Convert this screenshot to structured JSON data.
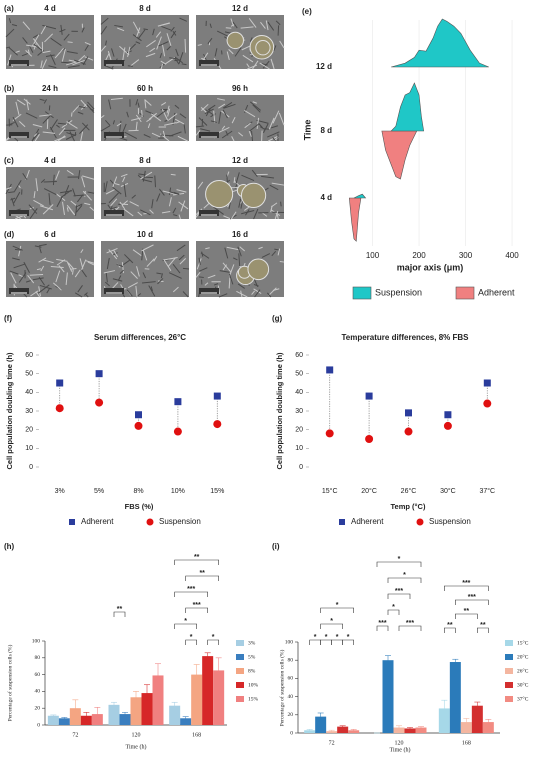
{
  "micrographs": [
    {
      "label": "(a)",
      "times": [
        "4 d",
        "8 d",
        "12 d"
      ]
    },
    {
      "label": "(b)",
      "times": [
        "24 h",
        "60 h",
        "96 h"
      ]
    },
    {
      "label": "(c)",
      "times": [
        "4 d",
        "8 d",
        "12 d"
      ]
    },
    {
      "label": "(d)",
      "times": [
        "6 d",
        "10 d",
        "16 d"
      ]
    }
  ],
  "chart_data": [
    {
      "type": "ridgeline",
      "label": "(e)",
      "xlabel": "major axis (μm)",
      "ylabel": "Time",
      "categories": [
        "4 d",
        "8 d",
        "12 d"
      ],
      "xlim": [
        30,
        430
      ],
      "xticks": [
        100,
        200,
        300,
        400
      ],
      "legend": "bottom",
      "series": [
        {
          "name": "Suspension",
          "color": "#1fc7c7",
          "side": "above",
          "ridges": [
            {
              "x": [
                60,
                70,
                78,
                85
              ],
              "values": [
                0,
                0.05,
                0.08,
                0
              ]
            },
            {
              "x": [
                140,
                150,
                160,
                170,
                180,
                190,
                200,
                205,
                210
              ],
              "values": [
                0,
                0.1,
                0.5,
                0.75,
                0.8,
                1.0,
                0.75,
                0.3,
                0
              ]
            },
            {
              "x": [
                140,
                170,
                190,
                200,
                215,
                230,
                240,
                250,
                260,
                275,
                290,
                310,
                330,
                350
              ],
              "values": [
                0,
                0.08,
                0.2,
                0.35,
                0.33,
                0.6,
                0.85,
                1.0,
                0.95,
                0.85,
                0.7,
                0.35,
                0.08,
                0
              ]
            }
          ]
        },
        {
          "name": "Adherent",
          "color": "#f08080",
          "side": "below",
          "ridges": [
            {
              "x": [
                50,
                55,
                60,
                65,
                70,
                75
              ],
              "values": [
                0,
                0.5,
                0.85,
                0.9,
                0.3,
                0
              ]
            },
            {
              "x": [
                120,
                128,
                140,
                150,
                160,
                170,
                180,
                195
              ],
              "values": [
                0,
                0.4,
                0.7,
                0.95,
                1.0,
                0.6,
                0.3,
                0
              ]
            },
            null
          ]
        }
      ]
    },
    {
      "type": "dot",
      "label": "(f)",
      "title": "Serum differences, 26°C",
      "xlabel": "FBS (%)",
      "ylabel": "Cell population doubling time (h)",
      "categories": [
        "3%",
        "5%",
        "8%",
        "10%",
        "15%"
      ],
      "ylim": [
        0,
        60
      ],
      "yticks": [
        0,
        10,
        20,
        30,
        40,
        50,
        60
      ],
      "legend": "bottom",
      "series": [
        {
          "name": "Adherent",
          "color": "#2a3c9c",
          "marker": "square",
          "values": [
            45,
            50,
            28,
            35,
            38
          ]
        },
        {
          "name": "Suspension",
          "color": "#e01010",
          "marker": "circle",
          "values": [
            31.5,
            34.5,
            22,
            19,
            23
          ]
        }
      ]
    },
    {
      "type": "dot",
      "label": "(g)",
      "title": "Temperature differences, 8% FBS",
      "xlabel": "Temp (°C)",
      "ylabel": "Cell population doubling time (h)",
      "categories": [
        "15°C",
        "20°C",
        "26°C",
        "30°C",
        "37°C"
      ],
      "ylim": [
        0,
        60
      ],
      "yticks": [
        0,
        10,
        20,
        30,
        40,
        50,
        60
      ],
      "legend": "bottom",
      "series": [
        {
          "name": "Adherent",
          "color": "#2a3c9c",
          "marker": "square",
          "values": [
            52,
            38,
            29,
            28,
            45
          ]
        },
        {
          "name": "Suspension",
          "color": "#e01010",
          "marker": "circle",
          "values": [
            18,
            15,
            19,
            22,
            34
          ]
        }
      ]
    },
    {
      "type": "bar",
      "label": "(h)",
      "xlabel": "Time (h)",
      "ylabel": "Percentage of suspension cells (%)",
      "categories": [
        "72",
        "120",
        "168"
      ],
      "ylim": [
        0,
        100
      ],
      "yticks": [
        0,
        20,
        40,
        60,
        80,
        100
      ],
      "legend": "right",
      "series": [
        {
          "name": "3%",
          "color": "#a6cee3",
          "values": [
            11,
            24,
            23
          ],
          "errors": [
            1,
            3,
            4
          ]
        },
        {
          "name": "5%",
          "color": "#3a7ebf",
          "values": [
            8,
            13,
            8
          ],
          "errors": [
            1,
            2,
            2
          ]
        },
        {
          "name": "8%",
          "color": "#f4a582",
          "values": [
            20,
            33,
            60
          ],
          "errors": [
            10,
            7,
            12
          ]
        },
        {
          "name": "10%",
          "color": "#d62728",
          "values": [
            11,
            38,
            82
          ],
          "errors": [
            4,
            10,
            4
          ]
        },
        {
          "name": "15%",
          "color": "#f08080",
          "values": [
            13,
            59,
            65
          ],
          "errors": [
            8,
            14,
            15
          ]
        }
      ],
      "annotations": [
        "**",
        "**",
        "**",
        "***",
        "***",
        "*",
        "*",
        "*"
      ]
    },
    {
      "type": "bar",
      "label": "(i)",
      "xlabel": "Time (h)",
      "ylabel": "Percentage of suspension cells (%)",
      "categories": [
        "72",
        "120",
        "168"
      ],
      "ylim": [
        0,
        100
      ],
      "yticks": [
        0,
        20,
        40,
        60,
        80,
        100
      ],
      "legend": "right",
      "series": [
        {
          "name": "15°C",
          "color": "#a6d8e8",
          "values": [
            3,
            0,
            27
          ],
          "errors": [
            1,
            0,
            9
          ]
        },
        {
          "name": "20°C",
          "color": "#2b7bba",
          "values": [
            18,
            80,
            78
          ],
          "errors": [
            4,
            5,
            3
          ]
        },
        {
          "name": "26°C",
          "color": "#f4b6a0",
          "values": [
            2,
            6,
            12
          ],
          "errors": [
            1,
            2,
            4
          ]
        },
        {
          "name": "30°C",
          "color": "#d32f2f",
          "values": [
            7,
            5,
            30
          ],
          "errors": [
            1,
            1,
            4
          ]
        },
        {
          "name": "37°C",
          "color": "#f28b82",
          "values": [
            3,
            6,
            12
          ],
          "errors": [
            1,
            1,
            3
          ]
        }
      ],
      "annotations": [
        "*",
        "*",
        "*",
        "*",
        "*",
        "*",
        "*",
        "*",
        "***",
        "*",
        "***",
        "***",
        "***",
        "***",
        "**",
        "**",
        "**"
      ]
    }
  ]
}
